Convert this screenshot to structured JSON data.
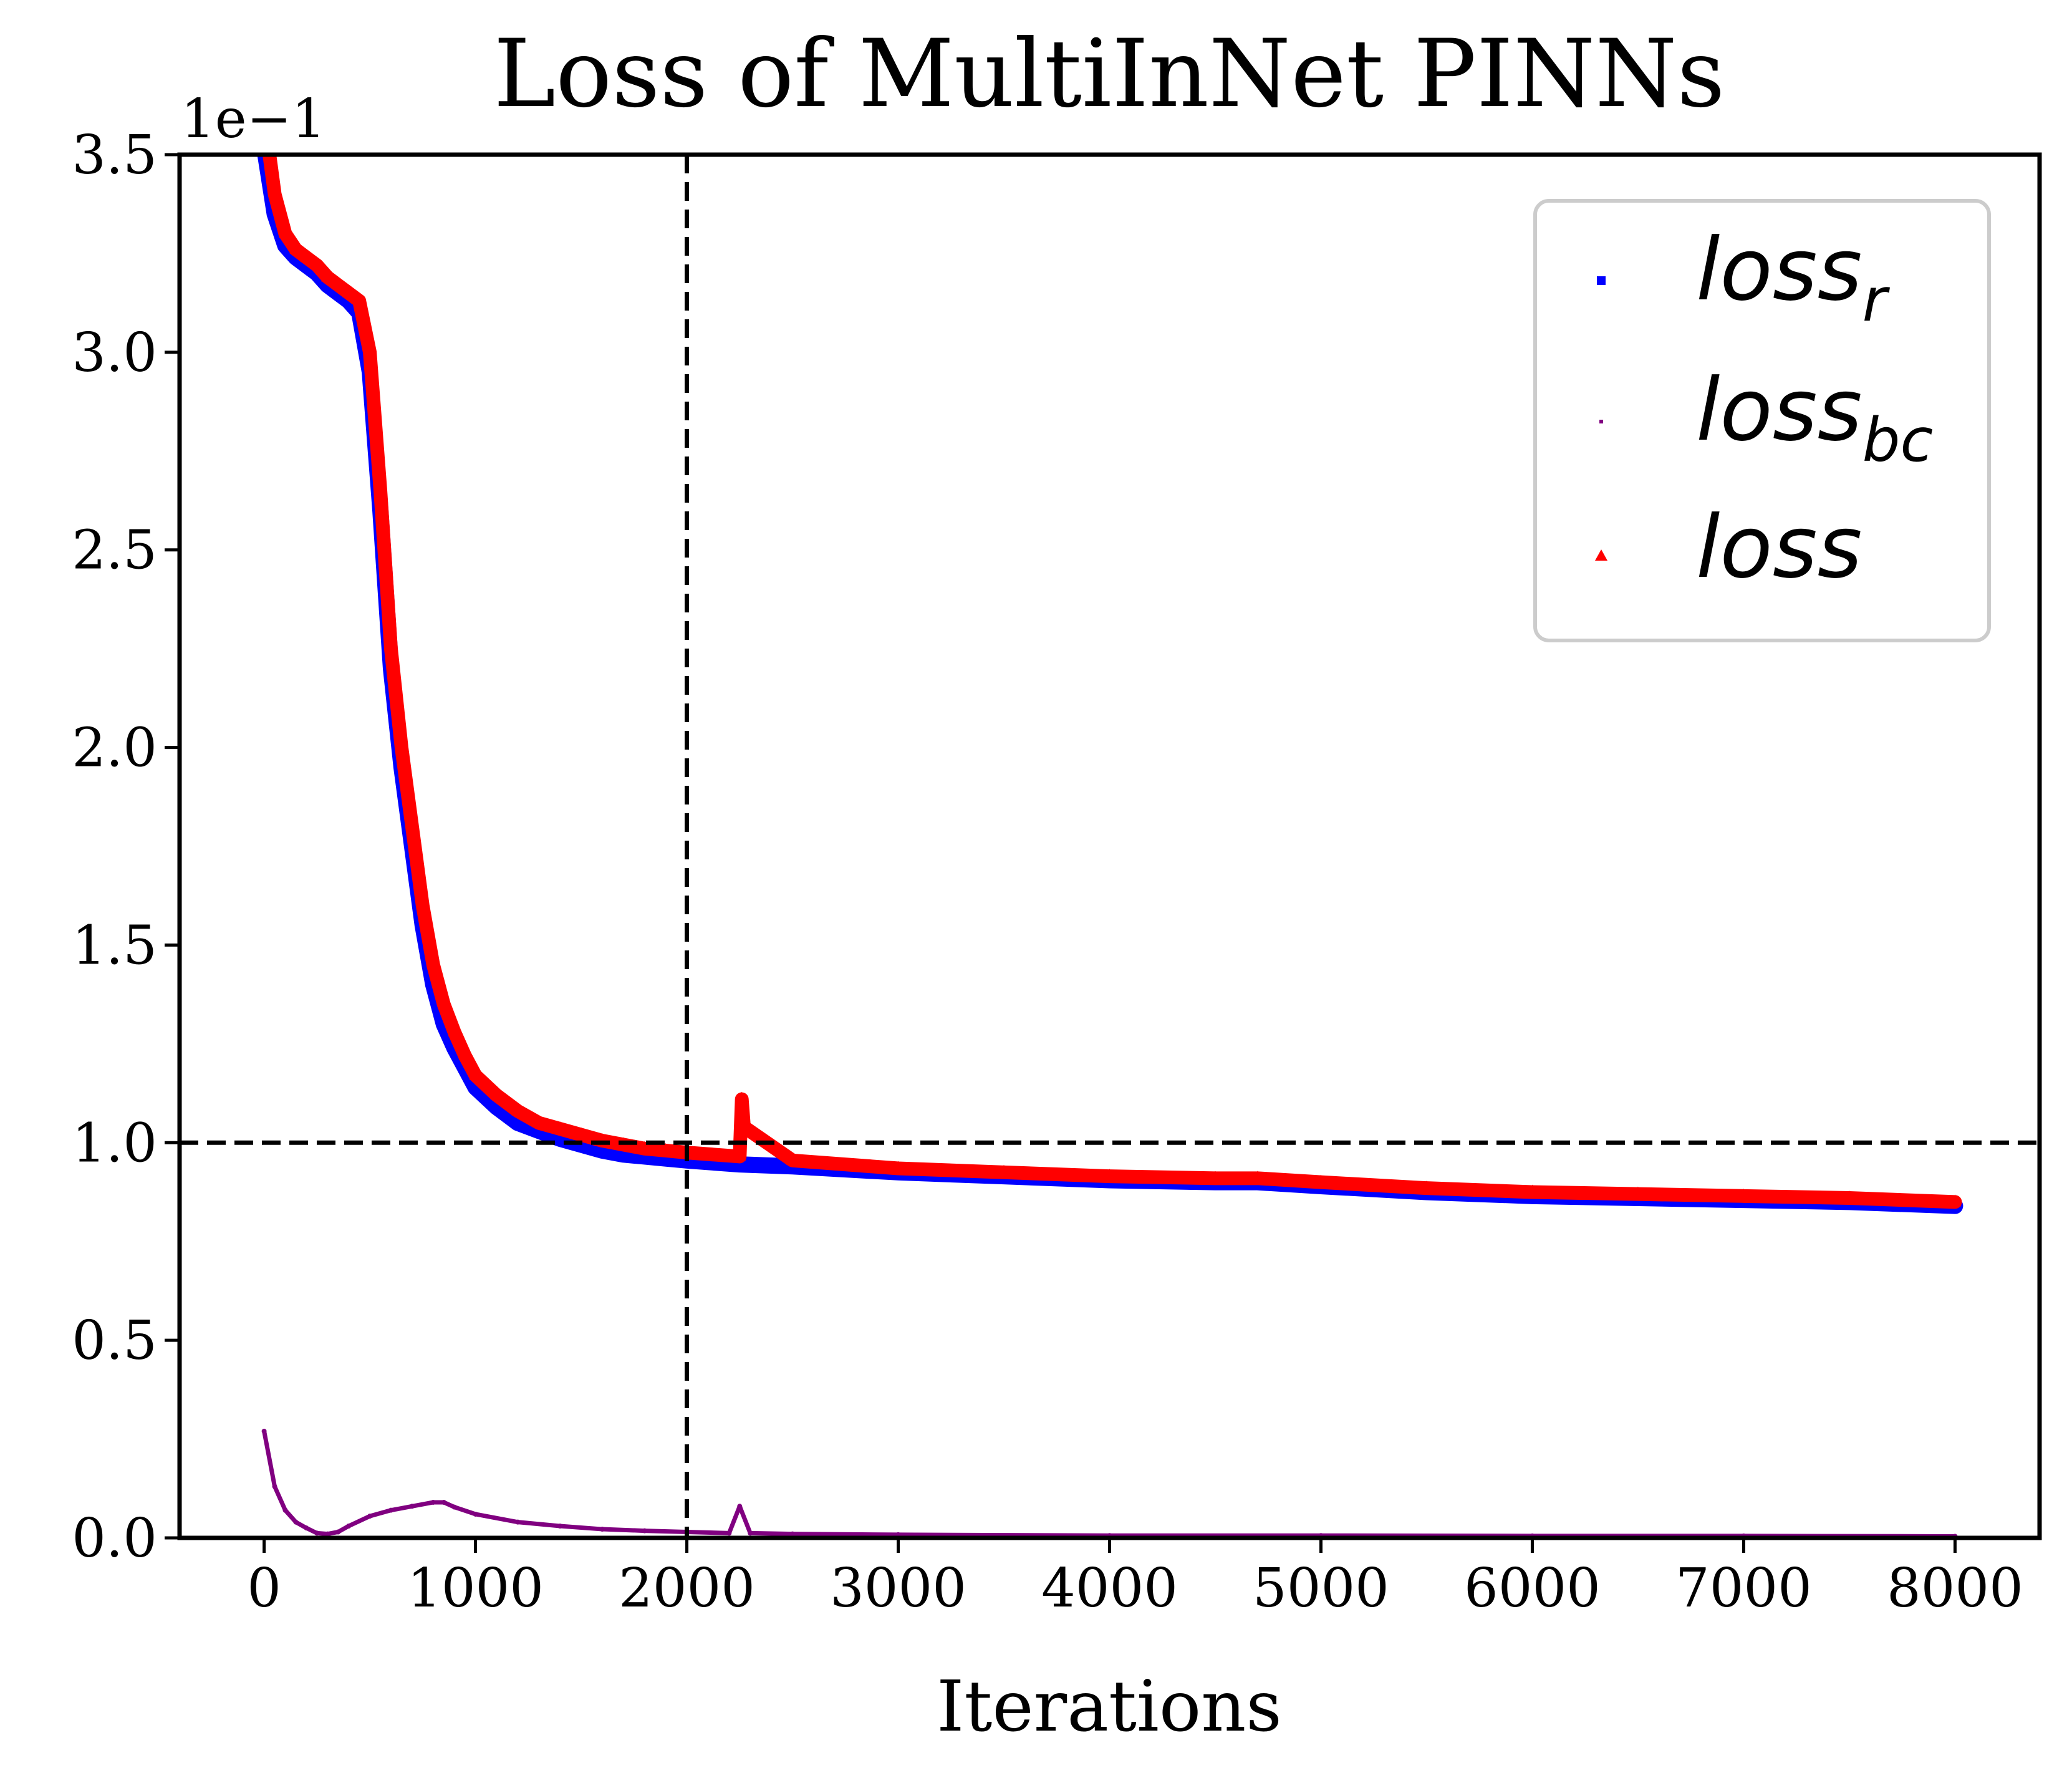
{
  "chart_data": {
    "type": "scatter",
    "title": "Loss of MultiInNet PINNs",
    "xlabel": "Iterations",
    "ylabel": "",
    "y_scale_note": "1e−1",
    "xlim": [
      -400,
      8400
    ],
    "ylim": [
      0,
      3.5
    ],
    "x_ticks": [
      0,
      1000,
      2000,
      3000,
      4000,
      5000,
      6000,
      7000,
      8000
    ],
    "x_tick_labels": [
      "0",
      "1000",
      "2000",
      "3000",
      "4000",
      "5000",
      "6000",
      "7000",
      "8000"
    ],
    "y_ticks": [
      0.0,
      0.5,
      1.0,
      1.5,
      2.0,
      2.5,
      3.0,
      3.5
    ],
    "y_tick_labels": [
      "0.0",
      "0.5",
      "1.0",
      "1.5",
      "2.0",
      "2.5",
      "3.0",
      "3.5"
    ],
    "grid": false,
    "legend_position": "top-right",
    "reference_lines": {
      "horizontal_y": 1.0,
      "vertical_x": 2000,
      "style": "dashed",
      "color": "#000000"
    },
    "series": [
      {
        "name": "loss",
        "name_sub": "r",
        "marker": "square",
        "color": "#0000ff",
        "x": [
          0,
          50,
          100,
          150,
          200,
          250,
          300,
          350,
          400,
          450,
          500,
          550,
          600,
          650,
          700,
          750,
          800,
          850,
          900,
          950,
          1000,
          1100,
          1200,
          1300,
          1400,
          1500,
          1600,
          1700,
          1800,
          1900,
          2000,
          2250,
          2500,
          3000,
          3500,
          4000,
          4500,
          4700,
          5000,
          5500,
          6000,
          6500,
          7000,
          7500,
          8000
        ],
        "y": [
          3.52,
          3.35,
          3.27,
          3.24,
          3.22,
          3.2,
          3.17,
          3.15,
          3.13,
          3.1,
          2.95,
          2.6,
          2.2,
          1.95,
          1.75,
          1.55,
          1.4,
          1.3,
          1.24,
          1.19,
          1.14,
          1.09,
          1.05,
          1.03,
          1.01,
          0.995,
          0.98,
          0.97,
          0.965,
          0.96,
          0.955,
          0.945,
          0.94,
          0.925,
          0.915,
          0.905,
          0.9,
          0.9,
          0.89,
          0.875,
          0.865,
          0.86,
          0.855,
          0.85,
          0.84
        ]
      },
      {
        "name": "loss",
        "name_sub": "bc",
        "marker": "point",
        "color": "#800080",
        "x": [
          0,
          50,
          100,
          150,
          200,
          250,
          300,
          350,
          400,
          500,
          600,
          700,
          800,
          850,
          900,
          1000,
          1200,
          1400,
          1600,
          1800,
          2000,
          2200,
          2250,
          2300,
          2500,
          3000,
          4000,
          5000,
          6000,
          7000,
          8000
        ],
        "y": [
          0.27,
          0.13,
          0.07,
          0.04,
          0.025,
          0.012,
          0.01,
          0.015,
          0.03,
          0.055,
          0.07,
          0.08,
          0.09,
          0.09,
          0.078,
          0.06,
          0.04,
          0.03,
          0.022,
          0.018,
          0.015,
          0.012,
          0.08,
          0.012,
          0.01,
          0.008,
          0.006,
          0.006,
          0.005,
          0.005,
          0.004
        ]
      },
      {
        "name": "loss",
        "name_sub": "",
        "marker": "triangle",
        "color": "#ff0000",
        "x": [
          0,
          50,
          100,
          150,
          200,
          250,
          300,
          350,
          400,
          450,
          500,
          550,
          600,
          650,
          700,
          750,
          800,
          850,
          900,
          950,
          1000,
          1100,
          1200,
          1300,
          1400,
          1500,
          1600,
          1700,
          1800,
          1900,
          2000,
          2250,
          2260,
          2270,
          2500,
          3000,
          3500,
          4000,
          4500,
          4700,
          5000,
          5500,
          6000,
          6500,
          7000,
          7500,
          8000
        ],
        "y": [
          3.6,
          3.4,
          3.3,
          3.26,
          3.24,
          3.22,
          3.19,
          3.17,
          3.15,
          3.13,
          3.0,
          2.65,
          2.25,
          2.0,
          1.8,
          1.6,
          1.45,
          1.35,
          1.28,
          1.22,
          1.17,
          1.12,
          1.08,
          1.05,
          1.035,
          1.02,
          1.005,
          0.995,
          0.985,
          0.98,
          0.975,
          0.965,
          1.11,
          1.04,
          0.955,
          0.935,
          0.925,
          0.915,
          0.91,
          0.91,
          0.9,
          0.885,
          0.875,
          0.87,
          0.865,
          0.86,
          0.85
        ]
      }
    ]
  }
}
